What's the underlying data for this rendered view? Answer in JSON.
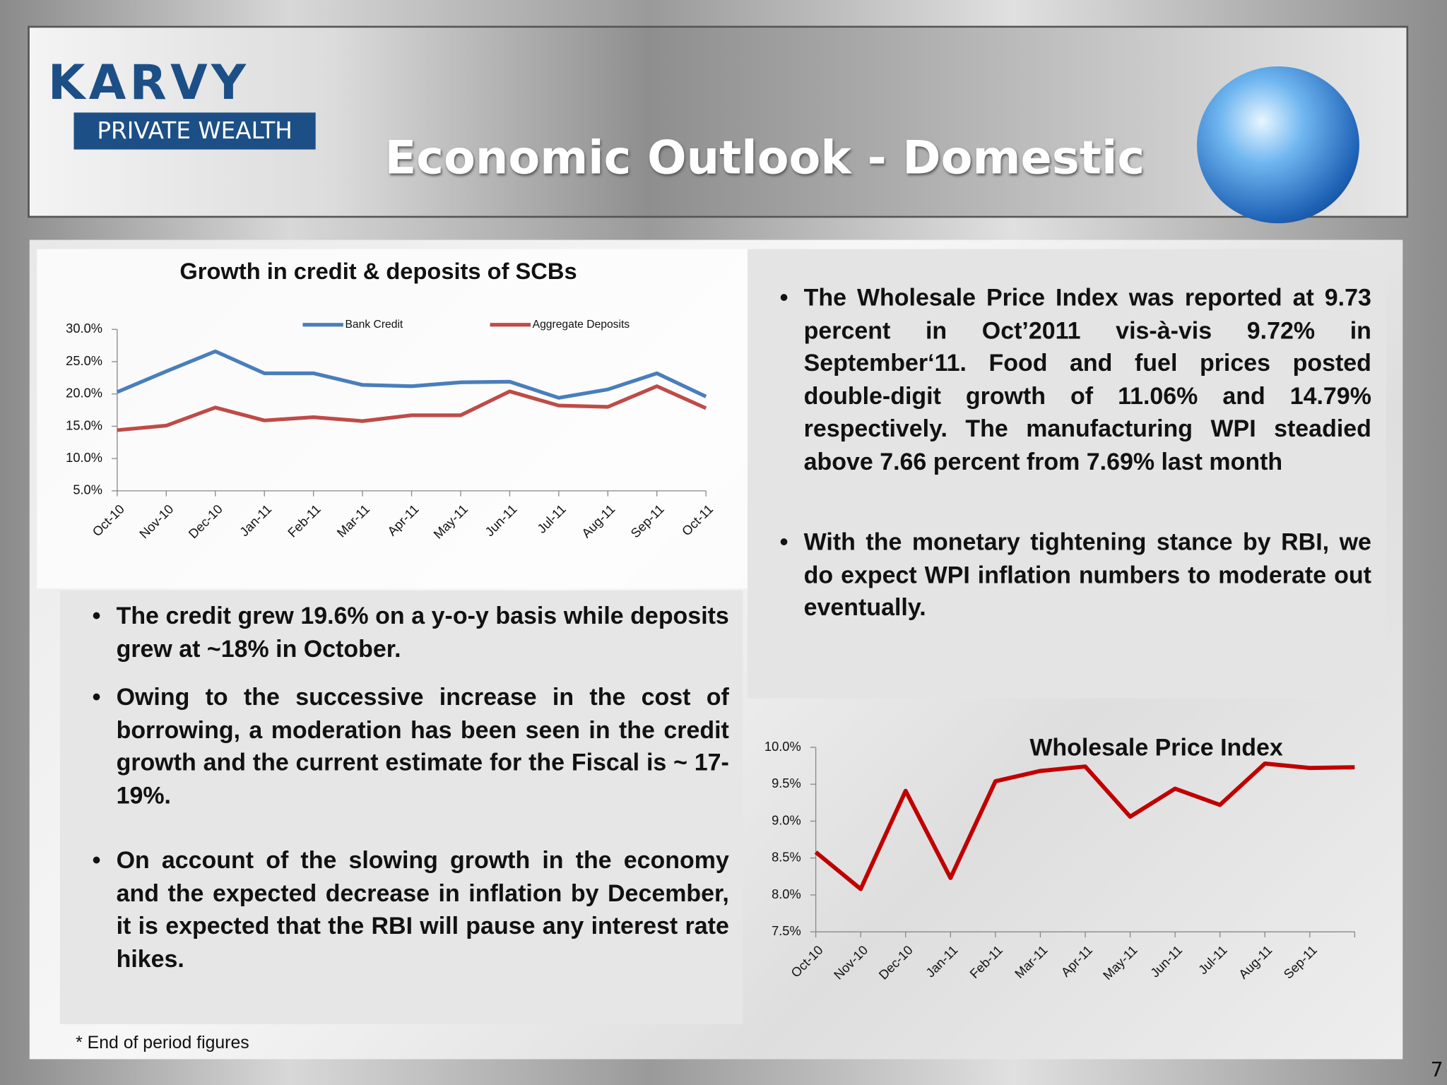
{
  "header": {
    "logo": "KARVY",
    "logo_sub": "PRIVATE WEALTH",
    "title": "Economic Outlook - Domestic"
  },
  "chart_data": [
    {
      "type": "line",
      "title": "Growth in credit & deposits of SCBs",
      "categories": [
        "Oct-10",
        "Nov-10",
        "Dec-10",
        "Jan-11",
        "Feb-11",
        "Mar-11",
        "Apr-11",
        "May-11",
        "Jun-11",
        "Jul-11",
        "Aug-11",
        "Sep-11",
        "Oct-11"
      ],
      "series": [
        {
          "name": "Bank Credit",
          "color": "#4a7ebb",
          "values": [
            20.3,
            23.5,
            26.6,
            23.2,
            23.2,
            21.4,
            21.2,
            21.8,
            21.9,
            19.4,
            20.7,
            23.2,
            19.6
          ]
        },
        {
          "name": "Aggregate Deposits",
          "color": "#be4b48",
          "values": [
            14.4,
            15.1,
            17.9,
            15.9,
            16.4,
            15.8,
            16.7,
            16.7,
            20.4,
            18.2,
            18.0,
            21.2,
            17.8
          ]
        }
      ],
      "ylim": [
        5,
        30
      ],
      "yticks": [
        {
          "value": 5,
          "label": "5.0%"
        },
        {
          "value": 10,
          "label": "10.0%"
        },
        {
          "value": 15,
          "label": "15.0%"
        },
        {
          "value": 20,
          "label": "20.0%"
        },
        {
          "value": 25,
          "label": "25.0%"
        },
        {
          "value": 30,
          "label": "30.0%"
        }
      ],
      "legend": "top"
    },
    {
      "type": "line",
      "title": "Wholesale Price Index",
      "categories": [
        "Oct-10",
        "Nov-10",
        "Dec-10",
        "Jan-11",
        "Feb-11",
        "Mar-11",
        "Apr-11",
        "May-11",
        "Jun-11",
        "Jul-11",
        "Aug-11",
        "Sep-11",
        null
      ],
      "series": [
        {
          "name": "Wholesale Price Index",
          "color": "#c00000",
          "values": [
            8.58,
            8.08,
            9.41,
            8.23,
            9.54,
            9.68,
            9.74,
            9.06,
            9.44,
            9.22,
            9.78,
            9.72,
            9.73
          ]
        }
      ],
      "ylim": [
        7.5,
        10
      ],
      "yticks": [
        {
          "value": 7.5,
          "label": "7.5%"
        },
        {
          "value": 8,
          "label": "8.0%"
        },
        {
          "value": 8.5,
          "label": "8.5%"
        },
        {
          "value": 9,
          "label": "9.0%"
        },
        {
          "value": 9.5,
          "label": "9.5%"
        },
        {
          "value": 10,
          "label": "10.0%"
        }
      ]
    }
  ],
  "left_bullets": [
    "The credit grew 19.6% on a y-o-y basis while deposits grew at ~18% in October.",
    "Owing to the successive increase in the cost of borrowing, a moderation has been seen in the credit growth and the current estimate for the Fiscal is ~ 17-19%.",
    "On account of the slowing growth in the economy and the expected decrease in inflation by December, it is expected that the RBI will pause any interest rate hikes."
  ],
  "right_bullets": [
    "The Wholesale Price Index was reported at 9.73 percent in Oct’2011 vis-à-vis 9.72% in September‘11. Food and fuel prices posted double-digit growth of 11.06% and 14.79% respectively. The manufacturing WPI steadied above 7.66 percent from 7.69% last month",
    "With the monetary tightening stance by RBI, we do expect WPI inflation numbers to moderate out eventually."
  ],
  "footnote": "* End of period figures",
  "page_number": "7"
}
